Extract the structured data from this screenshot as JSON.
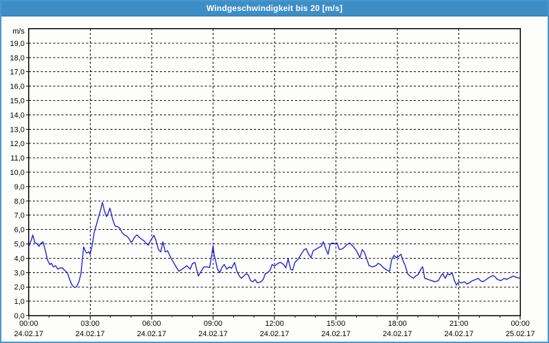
{
  "window": {
    "title": "Windgeschwindigkeit bis 20 [m/s]",
    "title_bar_color": "#3d8ec6",
    "border_color": "#4a97cb",
    "background_color": "#fdfefc"
  },
  "chart_data": {
    "type": "line",
    "title": "Windgeschwindigkeit bis 20 [m/s]",
    "series_name": "Windgeschwindigkeit",
    "unit_label": "m/s",
    "ylim": [
      0,
      20
    ],
    "y_tick_step": 1.0,
    "grid": "dashed-black, horizontal every 1 m/s, vertical every 3 h",
    "legend": "none",
    "line_color": "#2121c8",
    "x_range_minutes": [
      0,
      1440
    ],
    "x_minor_every_minutes": 60,
    "y_ticks": [
      {
        "v": 0,
        "label": "0,0"
      },
      {
        "v": 1,
        "label": "1,0"
      },
      {
        "v": 2,
        "label": "2,0"
      },
      {
        "v": 3,
        "label": "3,0"
      },
      {
        "v": 4,
        "label": "4,0"
      },
      {
        "v": 5,
        "label": "5,0"
      },
      {
        "v": 6,
        "label": "6,0"
      },
      {
        "v": 7,
        "label": "7,0"
      },
      {
        "v": 8,
        "label": "8,0"
      },
      {
        "v": 9,
        "label": "9,0"
      },
      {
        "v": 10,
        "label": "10,0"
      },
      {
        "v": 11,
        "label": "11,0"
      },
      {
        "v": 12,
        "label": "12,0"
      },
      {
        "v": 13,
        "label": "13,0"
      },
      {
        "v": 14,
        "label": "14,0"
      },
      {
        "v": 15,
        "label": "15,0"
      },
      {
        "v": 16,
        "label": "16,0"
      },
      {
        "v": 17,
        "label": "17,0"
      },
      {
        "v": 18,
        "label": "18,0"
      },
      {
        "v": 19,
        "label": "19,0"
      }
    ],
    "x_ticks": [
      {
        "minutes": 0,
        "time": "00:00",
        "date": "24.02.17"
      },
      {
        "minutes": 180,
        "time": "03:00",
        "date": "24.02.17"
      },
      {
        "minutes": 360,
        "time": "06:00",
        "date": "24.02.17"
      },
      {
        "minutes": 540,
        "time": "09:00",
        "date": "24.02.17"
      },
      {
        "minutes": 720,
        "time": "12:00",
        "date": "24.02.17"
      },
      {
        "minutes": 900,
        "time": "15:00",
        "date": "24.02.17"
      },
      {
        "minutes": 1080,
        "time": "18:00",
        "date": "24.02.17"
      },
      {
        "minutes": 1260,
        "time": "21:00",
        "date": "24.02.17"
      },
      {
        "minutes": 1440,
        "time": "00:00",
        "date": "25.02.17"
      }
    ],
    "points": [
      [
        0,
        4.8
      ],
      [
        8,
        5.3
      ],
      [
        12,
        5.62
      ],
      [
        18,
        5.1
      ],
      [
        25,
        5.0
      ],
      [
        30,
        4.83
      ],
      [
        35,
        5.03
      ],
      [
        42,
        5.15
      ],
      [
        49,
        4.52
      ],
      [
        55,
        3.88
      ],
      [
        62,
        3.56
      ],
      [
        67,
        3.64
      ],
      [
        72,
        3.4
      ],
      [
        79,
        3.48
      ],
      [
        85,
        3.24
      ],
      [
        92,
        3.32
      ],
      [
        99,
        3.32
      ],
      [
        105,
        3.16
      ],
      [
        113,
        3.0
      ],
      [
        120,
        2.52
      ],
      [
        127,
        2.13
      ],
      [
        133,
        1.97
      ],
      [
        140,
        2.0
      ],
      [
        147,
        2.36
      ],
      [
        153,
        2.92
      ],
      [
        161,
        4.79
      ],
      [
        166,
        4.5
      ],
      [
        170,
        4.36
      ],
      [
        176,
        4.45
      ],
      [
        180,
        4.28
      ],
      [
        186,
        4.9
      ],
      [
        192,
        5.8
      ],
      [
        199,
        6.4
      ],
      [
        206,
        7.0
      ],
      [
        211,
        7.4
      ],
      [
        216,
        7.89
      ],
      [
        222,
        7.3
      ],
      [
        228,
        6.9
      ],
      [
        233,
        7.15
      ],
      [
        238,
        7.5
      ],
      [
        246,
        6.7
      ],
      [
        253,
        6.25
      ],
      [
        260,
        6.2
      ],
      [
        267,
        6.1
      ],
      [
        273,
        5.8
      ],
      [
        280,
        5.63
      ],
      [
        287,
        5.55
      ],
      [
        293,
        5.4
      ],
      [
        300,
        5.1
      ],
      [
        304,
        5.2
      ],
      [
        310,
        5.47
      ],
      [
        317,
        5.63
      ],
      [
        327,
        5.39
      ],
      [
        337,
        5.23
      ],
      [
        343,
        5.07
      ],
      [
        350,
        4.91
      ],
      [
        357,
        5.23
      ],
      [
        367,
        5.6
      ],
      [
        373,
        5.23
      ],
      [
        380,
        4.6
      ],
      [
        387,
        4.44
      ],
      [
        393,
        5.15
      ],
      [
        400,
        4.44
      ],
      [
        407,
        4.52
      ],
      [
        413,
        4.2
      ],
      [
        420,
        3.88
      ],
      [
        427,
        3.6
      ],
      [
        433,
        3.35
      ],
      [
        440,
        3.1
      ],
      [
        447,
        3.2
      ],
      [
        453,
        3.3
      ],
      [
        463,
        3.48
      ],
      [
        473,
        3.24
      ],
      [
        480,
        3.64
      ],
      [
        487,
        3.7
      ],
      [
        497,
        2.76
      ],
      [
        503,
        3.0
      ],
      [
        513,
        3.4
      ],
      [
        523,
        3.4
      ],
      [
        530,
        3.35
      ],
      [
        537,
        4.36
      ],
      [
        540,
        4.88
      ],
      [
        543,
        4.28
      ],
      [
        547,
        3.88
      ],
      [
        553,
        3.24
      ],
      [
        560,
        3.0
      ],
      [
        567,
        3.4
      ],
      [
        573,
        3.56
      ],
      [
        580,
        3.24
      ],
      [
        588,
        3.4
      ],
      [
        594,
        3.3
      ],
      [
        603,
        3.7
      ],
      [
        610,
        3.08
      ],
      [
        617,
        2.76
      ],
      [
        623,
        2.6
      ],
      [
        630,
        2.76
      ],
      [
        637,
        2.92
      ],
      [
        643,
        2.84
      ],
      [
        650,
        2.44
      ],
      [
        657,
        2.36
      ],
      [
        663,
        2.52
      ],
      [
        670,
        2.28
      ],
      [
        680,
        2.36
      ],
      [
        687,
        2.52
      ],
      [
        693,
        2.92
      ],
      [
        700,
        3.0
      ],
      [
        707,
        3.16
      ],
      [
        713,
        3.56
      ],
      [
        720,
        3.45
      ],
      [
        730,
        3.64
      ],
      [
        737,
        3.72
      ],
      [
        747,
        3.56
      ],
      [
        753,
        3.32
      ],
      [
        760,
        3.96
      ],
      [
        767,
        3.24
      ],
      [
        773,
        3.16
      ],
      [
        780,
        3.72
      ],
      [
        790,
        3.96
      ],
      [
        800,
        4.36
      ],
      [
        807,
        4.6
      ],
      [
        813,
        4.67
      ],
      [
        820,
        4.28
      ],
      [
        827,
        4.04
      ],
      [
        833,
        4.52
      ],
      [
        840,
        4.6
      ],
      [
        850,
        4.76
      ],
      [
        857,
        4.83
      ],
      [
        863,
        5.15
      ],
      [
        870,
        4.67
      ],
      [
        877,
        4.28
      ],
      [
        883,
        4.99
      ],
      [
        890,
        5.07
      ],
      [
        897,
        5.0
      ],
      [
        903,
        5.07
      ],
      [
        910,
        4.6
      ],
      [
        920,
        4.67
      ],
      [
        930,
        4.9
      ],
      [
        940,
        5.07
      ],
      [
        950,
        4.83
      ],
      [
        960,
        4.52
      ],
      [
        970,
        4.04
      ],
      [
        977,
        4.6
      ],
      [
        983,
        4.44
      ],
      [
        990,
        3.96
      ],
      [
        997,
        3.48
      ],
      [
        1007,
        3.4
      ],
      [
        1017,
        3.48
      ],
      [
        1023,
        3.64
      ],
      [
        1030,
        3.56
      ],
      [
        1040,
        3.32
      ],
      [
        1050,
        3.16
      ],
      [
        1057,
        3.08
      ],
      [
        1063,
        3.88
      ],
      [
        1070,
        4.2
      ],
      [
        1077,
        4.04
      ],
      [
        1083,
        4.12
      ],
      [
        1090,
        4.28
      ],
      [
        1097,
        3.8
      ],
      [
        1103,
        3.48
      ],
      [
        1110,
        2.92
      ],
      [
        1117,
        2.76
      ],
      [
        1127,
        2.6
      ],
      [
        1133,
        2.76
      ],
      [
        1140,
        2.84
      ],
      [
        1150,
        3.3
      ],
      [
        1154,
        3.4
      ],
      [
        1160,
        2.6
      ],
      [
        1170,
        2.52
      ],
      [
        1180,
        2.44
      ],
      [
        1190,
        2.36
      ],
      [
        1200,
        2.44
      ],
      [
        1207,
        2.76
      ],
      [
        1213,
        2.92
      ],
      [
        1220,
        2.6
      ],
      [
        1227,
        2.92
      ],
      [
        1233,
        2.84
      ],
      [
        1240,
        3.0
      ],
      [
        1247,
        2.44
      ],
      [
        1253,
        2.13
      ],
      [
        1260,
        2.36
      ],
      [
        1267,
        2.28
      ],
      [
        1277,
        2.36
      ],
      [
        1283,
        2.2
      ],
      [
        1290,
        2.28
      ],
      [
        1300,
        2.44
      ],
      [
        1310,
        2.52
      ],
      [
        1317,
        2.6
      ],
      [
        1323,
        2.44
      ],
      [
        1330,
        2.36
      ],
      [
        1340,
        2.52
      ],
      [
        1350,
        2.68
      ],
      [
        1360,
        2.8
      ],
      [
        1367,
        2.68
      ],
      [
        1373,
        2.52
      ],
      [
        1383,
        2.44
      ],
      [
        1393,
        2.6
      ],
      [
        1400,
        2.52
      ],
      [
        1410,
        2.65
      ],
      [
        1420,
        2.76
      ],
      [
        1427,
        2.68
      ],
      [
        1440,
        2.6
      ]
    ]
  }
}
